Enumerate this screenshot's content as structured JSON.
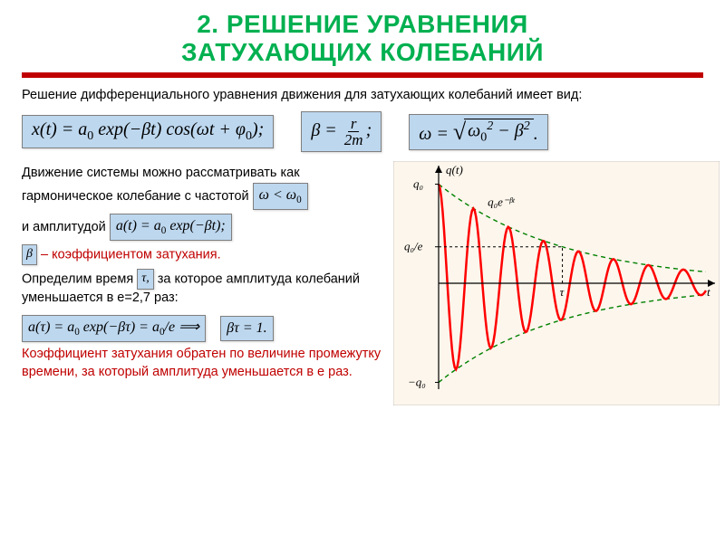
{
  "title_line1": "2. РЕШЕНИЕ УРАВНЕНИЯ",
  "title_line2": "ЗАТУХАЮЩИХ КОЛЕБАНИЙ",
  "intro": "Решение дифференциального уравнения движения для затухающих колебаний имеет вид:",
  "formulas": {
    "solution": "x(t) = a₀ exp(−βt) cos(ωt + φ₀);",
    "beta": "β = r / 2m ;",
    "omega": "ω = √(ω₀² − β²).",
    "freq_cond": "ω < ω₀",
    "amplitude": "a(t) = a₀ exp(−βt);",
    "beta_symbol": "β",
    "tau_symbol": "τ,",
    "decay": "a(τ) = a₀ exp(−βτ) = a₀ / e ⟹",
    "beta_tau": "βτ = 1."
  },
  "body": {
    "p1a": "Движение системы можно рассматривать как гармоническое колебание с частотой",
    "p1b": "и амплитудой",
    "p2a": " – коэффициентом затухания.",
    "p3a": "Определим время",
    "p3b": "за которое амплитуда колебаний уменьшается в e=2,7 раз:",
    "p4": "Коэффициент затухания обратен по величине промежутку времени, за который амплитуда уменьшается в e раз."
  },
  "chart": {
    "background": "#fdf6ec",
    "axis_color": "#000000",
    "curve_color": "#ff0000",
    "envelope_color": "#008000",
    "envelope_dash": "5,4",
    "line_width": 2.5,
    "xlim": [
      0,
      12
    ],
    "ylim": [
      -1.05,
      1.05
    ],
    "beta": 0.18,
    "omega": 4.0,
    "ylabel_top": "q₀",
    "ylabel_env": "q₀e⁻ᵝᵗ",
    "ylabel_e": "q₀/e",
    "ylabel_bot": "−q₀",
    "xlabel": "t",
    "title_label": "q(t)",
    "tau_label": "τ"
  },
  "colors": {
    "title": "#00b050",
    "rule": "#c00000",
    "formula_bg": "#bdd7ee",
    "red_text": "#c00000"
  }
}
